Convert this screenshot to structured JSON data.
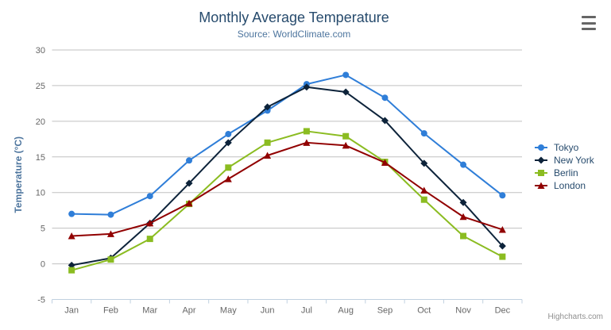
{
  "chart": {
    "title": "Monthly Average Temperature",
    "subtitle": "Source: WorldClimate.com",
    "credits": "Highcharts.com",
    "export_icon": "hamburger-icon"
  },
  "colors": {
    "background": "#ffffff",
    "title": "#274b6d",
    "subtitle": "#4d759e",
    "axis_title": "#4d759e",
    "axis_labels": "#666666",
    "grid": "#c0c0c0",
    "axis_line": "#c0d0e0",
    "credits": "#909090",
    "export_icon": "#666666"
  },
  "chart_data": {
    "type": "line",
    "title": "Monthly Average Temperature",
    "subtitle": "Source: WorldClimate.com",
    "xlabel": "",
    "ylabel": "Temperature (°C)",
    "categories": [
      "Jan",
      "Feb",
      "Mar",
      "Apr",
      "May",
      "Jun",
      "Jul",
      "Aug",
      "Sep",
      "Oct",
      "Nov",
      "Dec"
    ],
    "ylim": [
      -5,
      30
    ],
    "yticks": [
      -5,
      0,
      5,
      10,
      15,
      20,
      25,
      30
    ],
    "grid": true,
    "legend_position": "right",
    "series": [
      {
        "name": "Tokyo",
        "color": "#2f7ed8",
        "marker": "circle",
        "values": [
          7.0,
          6.9,
          9.5,
          14.5,
          18.2,
          21.5,
          25.2,
          26.5,
          23.3,
          18.3,
          13.9,
          9.6
        ]
      },
      {
        "name": "New York",
        "color": "#0d233a",
        "marker": "diamond",
        "values": [
          -0.2,
          0.8,
          5.7,
          11.3,
          17.0,
          22.0,
          24.8,
          24.1,
          20.1,
          14.1,
          8.6,
          2.5
        ]
      },
      {
        "name": "Berlin",
        "color": "#8bbc21",
        "marker": "square",
        "values": [
          -0.9,
          0.6,
          3.5,
          8.4,
          13.5,
          17.0,
          18.6,
          17.9,
          14.3,
          9.0,
          3.9,
          1.0
        ]
      },
      {
        "name": "London",
        "color": "#910000",
        "marker": "triangle",
        "values": [
          3.9,
          4.2,
          5.7,
          8.5,
          11.9,
          15.2,
          17.0,
          16.6,
          14.2,
          10.3,
          6.6,
          4.8
        ]
      }
    ]
  }
}
